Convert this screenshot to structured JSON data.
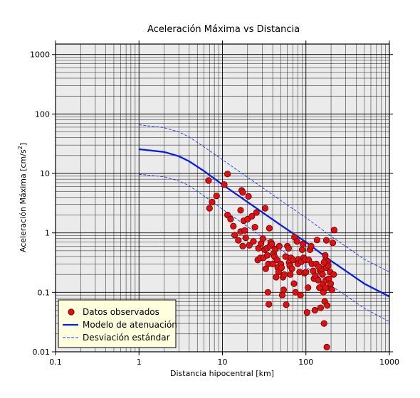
{
  "chart_data": {
    "type": "scatter",
    "title": "Aceleración Máxima vs Distancia",
    "xlabel": "Distancia hipocentral [km]",
    "ylabel_main": "Aceleración Máxima [cm/s",
    "ylabel_sup": "2",
    "ylabel_end": "]",
    "x_scale": "log",
    "y_scale": "log",
    "xlim": [
      0.1,
      1000
    ],
    "ylim": [
      0.01,
      1500
    ],
    "x_ticks": [
      {
        "value": 0.1,
        "label": "0.1"
      },
      {
        "value": 1,
        "label": "1"
      },
      {
        "value": 10,
        "label": "10"
      },
      {
        "value": 100,
        "label": "100"
      },
      {
        "value": 1000,
        "label": "1000"
      }
    ],
    "y_ticks": [
      {
        "value": 0.01,
        "label": "0.01"
      },
      {
        "value": 0.1,
        "label": "0.1"
      },
      {
        "value": 1,
        "label": "1"
      },
      {
        "value": 10,
        "label": "10"
      },
      {
        "value": 100,
        "label": "100"
      },
      {
        "value": 1000,
        "label": "1000"
      }
    ],
    "grid": true,
    "legend_position": "bottom-left",
    "colors": {
      "plot_background": "#ebebeb",
      "grid": "#000000",
      "points_fill": "#dd1111",
      "points_edge": "#660000",
      "model": "#0a1ee0",
      "stddev": "#2233ee",
      "legend_background": "#ffffdd"
    },
    "series": [
      {
        "name": "Datos observados",
        "kind": "points",
        "points": [
          [
            6.8,
            7.6
          ],
          [
            7.0,
            2.6
          ],
          [
            7.5,
            3.3
          ],
          [
            8.5,
            4.2
          ],
          [
            10.5,
            6.5
          ],
          [
            11.5,
            9.8
          ],
          [
            11.5,
            2.0
          ],
          [
            12.5,
            1.7
          ],
          [
            13.5,
            1.3
          ],
          [
            14,
            0.92
          ],
          [
            15.5,
            0.75
          ],
          [
            16.5,
            1.05
          ],
          [
            16.5,
            2.4
          ],
          [
            17,
            5.2
          ],
          [
            17.5,
            4.8
          ],
          [
            17.5,
            0.6
          ],
          [
            18,
            1.6
          ],
          [
            18.5,
            1.1
          ],
          [
            19,
            0.83
          ],
          [
            20,
            1.7
          ],
          [
            20.5,
            4.1
          ],
          [
            21,
            0.62
          ],
          [
            22.5,
            1.9
          ],
          [
            23.5,
            0.72
          ],
          [
            24.5,
            1.25
          ],
          [
            25.5,
            2.2
          ],
          [
            26.5,
            0.35
          ],
          [
            27,
            0.55
          ],
          [
            28.5,
            0.38
          ],
          [
            29,
            0.66
          ],
          [
            30.5,
            0.8
          ],
          [
            31,
            0.38
          ],
          [
            32,
            0.52
          ],
          [
            32.5,
            2.6
          ],
          [
            33,
            0.25
          ],
          [
            34,
            0.55
          ],
          [
            34.5,
            0.42
          ],
          [
            35,
            0.1
          ],
          [
            35.5,
            0.3
          ],
          [
            36,
            0.063
          ],
          [
            36.5,
            1.2
          ],
          [
            37,
            0.6
          ],
          [
            38,
            0.7
          ],
          [
            39,
            0.65
          ],
          [
            40,
            0.3
          ],
          [
            41,
            0.45
          ],
          [
            42,
            0.4
          ],
          [
            43,
            0.53
          ],
          [
            44,
            0.18
          ],
          [
            45,
            0.35
          ],
          [
            46,
            0.26
          ],
          [
            47,
            0.22
          ],
          [
            48,
            0.6
          ],
          [
            50,
            0.3
          ],
          [
            51,
            0.26
          ],
          [
            52,
            0.09
          ],
          [
            53,
            0.18
          ],
          [
            54,
            0.11
          ],
          [
            55,
            0.2
          ],
          [
            57,
            0.4
          ],
          [
            58,
            0.062
          ],
          [
            60,
            0.6
          ],
          [
            62,
            0.55
          ],
          [
            63,
            0.32
          ],
          [
            64,
            0.28
          ],
          [
            65,
            0.2
          ],
          [
            66,
            0.38
          ],
          [
            68,
            0.25
          ],
          [
            70,
            0.35
          ],
          [
            72,
            0.14
          ],
          [
            73,
            0.85
          ],
          [
            75,
            0.1
          ],
          [
            78,
            0.72
          ],
          [
            80,
            0.3
          ],
          [
            82,
            0.36
          ],
          [
            84,
            0.22
          ],
          [
            86,
            0.09
          ],
          [
            88,
            0.33
          ],
          [
            90,
            0.52
          ],
          [
            92,
            0.65
          ],
          [
            94,
            0.38
          ],
          [
            96,
            0.21
          ],
          [
            98,
            0.35
          ],
          [
            100,
            0.22
          ],
          [
            103,
            0.046
          ],
          [
            106,
            0.12
          ],
          [
            108,
            0.35
          ],
          [
            112,
            0.52
          ],
          [
            115,
            0.6
          ],
          [
            118,
            0.3
          ],
          [
            122,
            0.23
          ],
          [
            125,
            0.17
          ],
          [
            128,
            0.05
          ],
          [
            130,
            0.19
          ],
          [
            133,
            0.3
          ],
          [
            136,
            0.76
          ],
          [
            140,
            0.16
          ],
          [
            145,
            0.12
          ],
          [
            148,
            0.23
          ],
          [
            150,
            0.055
          ],
          [
            153,
            0.22
          ],
          [
            155,
            0.25
          ],
          [
            158,
            0.2
          ],
          [
            160,
            0.14
          ],
          [
            162,
            0.1
          ],
          [
            165,
            0.03
          ],
          [
            168,
            0.07
          ],
          [
            170,
            0.42
          ],
          [
            172,
            0.35
          ],
          [
            174,
            0.16
          ],
          [
            176,
            0.26
          ],
          [
            178,
            0.012
          ],
          [
            180,
            0.06
          ],
          [
            182,
            0.33
          ],
          [
            185,
            0.28
          ],
          [
            188,
            0.17
          ],
          [
            190,
            0.12
          ],
          [
            195,
            0.22
          ],
          [
            198,
            0.14
          ],
          [
            205,
            0.11
          ],
          [
            210,
            0.68
          ],
          [
            215,
            0.2
          ],
          [
            218,
            1.12
          ],
          [
            172,
            0.12
          ],
          [
            176,
            0.75
          ],
          [
            165,
            0.32
          ],
          [
            142,
            0.27
          ]
        ]
      },
      {
        "name": "Modelo de atenuación",
        "kind": "line",
        "points": [
          [
            1,
            25.5
          ],
          [
            2,
            23
          ],
          [
            3,
            19.5
          ],
          [
            4,
            16
          ],
          [
            6,
            11
          ],
          [
            10,
            6.5
          ],
          [
            20,
            3.3
          ],
          [
            50,
            1.35
          ],
          [
            100,
            0.7
          ],
          [
            200,
            0.34
          ],
          [
            500,
            0.14
          ],
          [
            1000,
            0.085
          ]
        ]
      },
      {
        "name": "Desviación estándar",
        "kind": "dashed",
        "upper": [
          [
            1,
            66
          ],
          [
            2,
            59
          ],
          [
            3,
            50
          ],
          [
            4,
            41
          ],
          [
            6,
            28
          ],
          [
            10,
            17
          ],
          [
            20,
            8.6
          ],
          [
            50,
            3.5
          ],
          [
            100,
            1.8
          ],
          [
            200,
            0.88
          ],
          [
            500,
            0.36
          ],
          [
            1000,
            0.22
          ]
        ],
        "lower": [
          [
            1,
            9.7
          ],
          [
            2,
            8.8
          ],
          [
            3,
            7.5
          ],
          [
            4,
            6.2
          ],
          [
            6,
            4.2
          ],
          [
            10,
            2.5
          ],
          [
            20,
            1.27
          ],
          [
            50,
            0.52
          ],
          [
            100,
            0.27
          ],
          [
            200,
            0.13
          ],
          [
            500,
            0.054
          ],
          [
            1000,
            0.032
          ]
        ]
      }
    ]
  }
}
